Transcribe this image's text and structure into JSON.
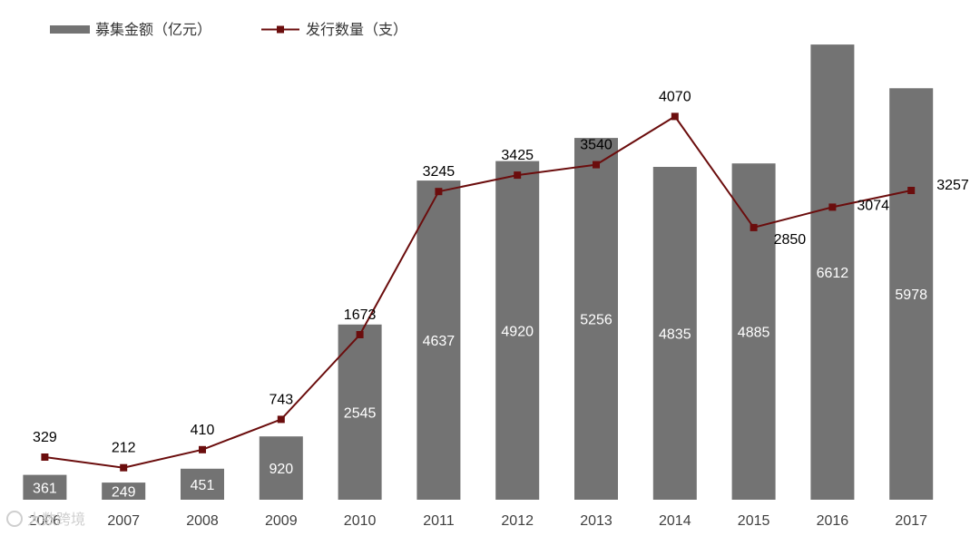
{
  "chart_data": {
    "type": "bar",
    "categories": [
      "2006",
      "2007",
      "2008",
      "2009",
      "2010",
      "2011",
      "2012",
      "2013",
      "2014",
      "2015",
      "2016",
      "2017"
    ],
    "series": [
      {
        "name": "募集金额（亿元）",
        "type": "bar",
        "values": [
          361,
          249,
          451,
          920,
          2545,
          4637,
          4920,
          5256,
          4835,
          4885,
          6612,
          5978
        ]
      },
      {
        "name": "发行数量（支）",
        "type": "line",
        "values": [
          329,
          212,
          410,
          743,
          1673,
          3245,
          3425,
          3540,
          4070,
          2850,
          3074,
          3257
        ]
      }
    ],
    "legend_position": "top-left",
    "grid": false
  },
  "colors": {
    "bar": "#737373",
    "line": "#6b0d0d",
    "bar_label": "#ffffff",
    "line_label": "#000000",
    "axis_label": "#404040"
  },
  "watermark": "大数跨境"
}
